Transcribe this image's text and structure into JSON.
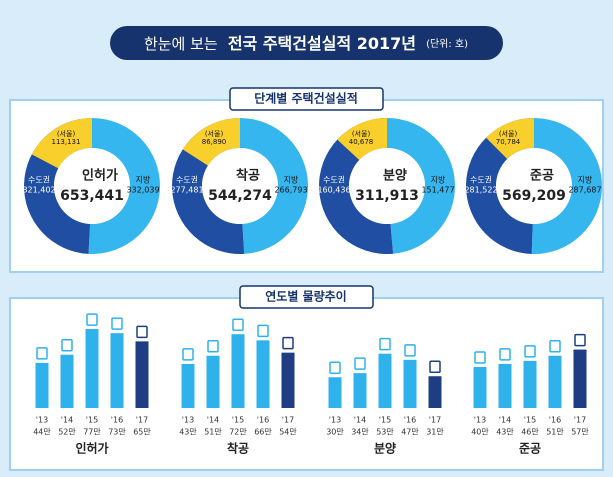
{
  "header": {
    "prefix": "한눈에 보는",
    "title": "전국 주택건설실적 2017년",
    "unit": "(단위: 호)"
  },
  "sections": [
    "단계별 주택건설실적",
    "연도별 물량추이"
  ],
  "chart_data": [
    {
      "type": "donut",
      "title": "인허가",
      "categories": [
        "지방",
        "수도권"
      ],
      "values": [
        332039,
        321402
      ],
      "value_labels": [
        "332,039",
        "321,402"
      ],
      "colors": [
        "#35b6ee",
        "#1f4ea3"
      ],
      "inset": {
        "name": "(서울)",
        "value": 113131,
        "value_label": "113,131",
        "color": "#f9cf2c"
      },
      "total": 653441,
      "total_label": "653,441"
    },
    {
      "type": "donut",
      "title": "착공",
      "categories": [
        "지방",
        "수도권"
      ],
      "values": [
        266793,
        277481
      ],
      "value_labels": [
        "266,793",
        "277,481"
      ],
      "colors": [
        "#35b6ee",
        "#1f4ea3"
      ],
      "inset": {
        "name": "(서울)",
        "value": 86890,
        "value_label": "86,890",
        "color": "#f9cf2c"
      },
      "total": 544274,
      "total_label": "544,274"
    },
    {
      "type": "donut",
      "title": "분양",
      "categories": [
        "지방",
        "수도권"
      ],
      "values": [
        151477,
        160436
      ],
      "value_labels": [
        "151,477",
        "160,436"
      ],
      "colors": [
        "#35b6ee",
        "#1f4ea3"
      ],
      "inset": {
        "name": "(서울)",
        "value": 40678,
        "value_label": "40,678",
        "color": "#f9cf2c"
      },
      "total": 311913,
      "total_label": "311,913"
    },
    {
      "type": "donut",
      "title": "준공",
      "categories": [
        "지방",
        "수도권"
      ],
      "values": [
        287687,
        281522
      ],
      "value_labels": [
        "287,687",
        "281,522"
      ],
      "colors": [
        "#35b6ee",
        "#1f4ea3"
      ],
      "inset": {
        "name": "(서울)",
        "value": 70784,
        "value_label": "70,784",
        "color": "#f9cf2c"
      },
      "total": 569209,
      "total_label": "569,209"
    },
    {
      "type": "bar",
      "title": "인허가",
      "categories": [
        "'13",
        "'14",
        "'15",
        "'16",
        "'17"
      ],
      "values": [
        44,
        52,
        77,
        73,
        65
      ],
      "value_labels": [
        "44만",
        "52만",
        "77만",
        "73만",
        "65만"
      ],
      "colors": [
        "#2fb1ec",
        "#2fb1ec",
        "#2fb1ec",
        "#2fb1ec",
        "#1f3d82"
      ],
      "ylim": [
        0,
        80
      ]
    },
    {
      "type": "bar",
      "title": "착공",
      "categories": [
        "'13",
        "'14",
        "'15",
        "'16",
        "'17"
      ],
      "values": [
        43,
        51,
        72,
        66,
        54
      ],
      "value_labels": [
        "43만",
        "51만",
        "72만",
        "66만",
        "54만"
      ],
      "colors": [
        "#2fb1ec",
        "#2fb1ec",
        "#2fb1ec",
        "#2fb1ec",
        "#1f3d82"
      ],
      "ylim": [
        0,
        80
      ]
    },
    {
      "type": "bar",
      "title": "분양",
      "categories": [
        "'13",
        "'14",
        "'15",
        "'16",
        "'17"
      ],
      "values": [
        30,
        34,
        53,
        47,
        31
      ],
      "value_labels": [
        "30만",
        "34만",
        "53만",
        "47만",
        "31만"
      ],
      "colors": [
        "#2fb1ec",
        "#2fb1ec",
        "#2fb1ec",
        "#2fb1ec",
        "#1f3d82"
      ],
      "ylim": [
        0,
        80
      ]
    },
    {
      "type": "bar",
      "title": "준공",
      "categories": [
        "'13",
        "'14",
        "'15",
        "'16",
        "'17"
      ],
      "values": [
        40,
        43,
        46,
        51,
        57
      ],
      "value_labels": [
        "40만",
        "43만",
        "46만",
        "51만",
        "57만"
      ],
      "colors": [
        "#2fb1ec",
        "#2fb1ec",
        "#2fb1ec",
        "#2fb1ec",
        "#1f3d82"
      ],
      "ylim": [
        0,
        80
      ]
    }
  ]
}
